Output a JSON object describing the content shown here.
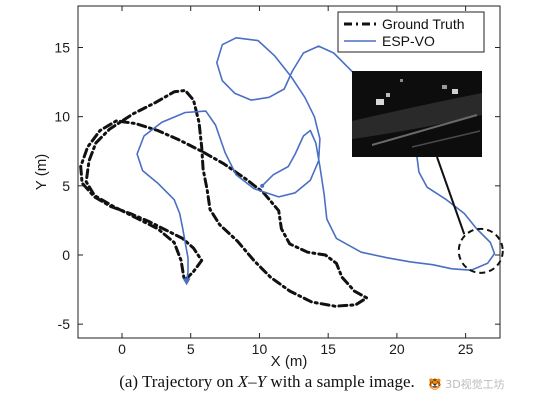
{
  "chart_data": {
    "type": "line",
    "xlabel": "X (m)",
    "ylabel": "Y (m)",
    "xlim": [
      -3.2,
      27.5
    ],
    "ylim": [
      -6,
      18
    ],
    "xticks": [
      0,
      5,
      10,
      15,
      20,
      25
    ],
    "yticks": [
      -5,
      0,
      5,
      10,
      15
    ],
    "grid": false,
    "legend_position": "top-right",
    "colors": {
      "ground_truth": "#111111",
      "esp_vo": "#4a6fc4"
    },
    "series": [
      {
        "name": "Ground Truth",
        "style": "dash-dot",
        "points": [
          [
            4.6,
            -1.8
          ],
          [
            5.2,
            -1.2
          ],
          [
            5.8,
            -0.4
          ],
          [
            5.2,
            0.5
          ],
          [
            4.4,
            1.2
          ],
          [
            3.2,
            1.8
          ],
          [
            2.0,
            2.4
          ],
          [
            0.6,
            3.0
          ],
          [
            -0.8,
            3.5
          ],
          [
            -2.0,
            4.2
          ],
          [
            -2.9,
            5.2
          ],
          [
            -3.0,
            6.4
          ],
          [
            -2.5,
            7.8
          ],
          [
            -1.6,
            9.0
          ],
          [
            -0.4,
            9.7
          ],
          [
            1.0,
            9.5
          ],
          [
            2.6,
            9.0
          ],
          [
            4.2,
            8.3
          ],
          [
            5.8,
            7.5
          ],
          [
            7.4,
            6.6
          ],
          [
            9.0,
            5.5
          ],
          [
            10.3,
            4.5
          ],
          [
            11.4,
            3.2
          ],
          [
            11.6,
            1.9
          ],
          [
            12.2,
            0.8
          ],
          [
            13.5,
            0.2
          ],
          [
            14.8,
            0.0
          ],
          [
            15.6,
            -0.6
          ],
          [
            16.0,
            -1.6
          ],
          [
            16.9,
            -2.6
          ],
          [
            17.8,
            -3.1
          ],
          [
            17.0,
            -3.6
          ],
          [
            15.5,
            -3.7
          ],
          [
            13.8,
            -3.4
          ],
          [
            12.2,
            -2.6
          ],
          [
            10.8,
            -1.6
          ],
          [
            9.6,
            -0.4
          ],
          [
            8.4,
            1.0
          ],
          [
            7.1,
            2.2
          ],
          [
            6.4,
            3.3
          ],
          [
            6.2,
            4.7
          ],
          [
            5.9,
            6.2
          ],
          [
            5.8,
            7.8
          ],
          [
            5.6,
            9.6
          ],
          [
            5.2,
            11.2
          ],
          [
            4.6,
            11.9
          ],
          [
            3.8,
            11.8
          ],
          [
            2.4,
            11.0
          ],
          [
            0.8,
            10.2
          ],
          [
            -0.9,
            9.1
          ],
          [
            -1.9,
            8.1
          ],
          [
            -2.4,
            6.8
          ],
          [
            -2.6,
            5.3
          ],
          [
            -2.0,
            4.3
          ],
          [
            -0.6,
            3.5
          ],
          [
            1.0,
            2.7
          ],
          [
            2.6,
            1.9
          ],
          [
            3.8,
            0.9
          ],
          [
            4.3,
            -0.4
          ],
          [
            4.5,
            -1.6
          ]
        ]
      },
      {
        "name": "ESP-VO",
        "style": "solid",
        "points": [
          [
            4.7,
            -2.0
          ],
          [
            4.8,
            -1.2
          ],
          [
            4.8,
            -0.2
          ],
          [
            4.6,
            0.9
          ],
          [
            4.4,
            2.0
          ],
          [
            4.2,
            3.0
          ],
          [
            3.8,
            4.0
          ],
          [
            2.6,
            5.2
          ],
          [
            1.5,
            6.1
          ],
          [
            1.1,
            7.3
          ],
          [
            1.6,
            8.6
          ],
          [
            2.9,
            9.6
          ],
          [
            4.6,
            10.3
          ],
          [
            6.1,
            10.4
          ],
          [
            6.8,
            9.4
          ],
          [
            7.5,
            7.4
          ],
          [
            8.3,
            5.8
          ],
          [
            9.6,
            4.8
          ],
          [
            11.4,
            4.2
          ],
          [
            12.6,
            4.5
          ],
          [
            13.7,
            5.4
          ],
          [
            14.3,
            6.8
          ],
          [
            14.4,
            8.4
          ],
          [
            14.0,
            10.0
          ],
          [
            13.3,
            11.4
          ],
          [
            12.3,
            12.9
          ],
          [
            11.1,
            14.4
          ],
          [
            9.9,
            15.5
          ],
          [
            8.3,
            15.7
          ],
          [
            7.3,
            15.2
          ],
          [
            6.9,
            13.9
          ],
          [
            7.3,
            12.6
          ],
          [
            8.2,
            11.7
          ],
          [
            9.4,
            11.2
          ],
          [
            10.7,
            11.4
          ],
          [
            11.8,
            12.0
          ],
          [
            12.4,
            13.3
          ],
          [
            13.2,
            14.6
          ],
          [
            14.3,
            15.1
          ],
          [
            15.4,
            14.6
          ],
          [
            16.6,
            13.4
          ],
          [
            17.7,
            12.3
          ],
          [
            18.5,
            11.6
          ],
          [
            19.8,
            10.7
          ],
          [
            20.8,
            9.3
          ],
          [
            21.4,
            7.6
          ],
          [
            21.6,
            6.0
          ],
          [
            22.2,
            4.9
          ],
          [
            23.6,
            4.0
          ],
          [
            24.9,
            3.0
          ],
          [
            25.8,
            1.9
          ],
          [
            26.8,
            0.9
          ],
          [
            27.1,
            0.1
          ],
          [
            26.6,
            -0.6
          ],
          [
            25.4,
            -1.1
          ],
          [
            24.0,
            -1.0
          ],
          [
            22.6,
            -0.7
          ],
          [
            21.0,
            -0.5
          ],
          [
            19.3,
            -0.2
          ],
          [
            17.4,
            0.2
          ],
          [
            15.6,
            1.2
          ],
          [
            14.9,
            2.6
          ],
          [
            14.7,
            4.4
          ],
          [
            14.4,
            6.4
          ],
          [
            14.1,
            8.1
          ],
          [
            13.7,
            9.0
          ],
          [
            13.2,
            8.6
          ],
          [
            12.6,
            7.3
          ],
          [
            12.1,
            6.4
          ],
          [
            11.0,
            5.8
          ],
          [
            10.2,
            5.0
          ]
        ]
      }
    ]
  },
  "inset": {
    "alt": "sample image",
    "description_name": "sample-image-inset"
  },
  "caption": {
    "prefix": "(a)  Trajectory on ",
    "math": "X–Y",
    "suffix": " with a sample image."
  },
  "watermark": "🐯 3D视觉工坊"
}
